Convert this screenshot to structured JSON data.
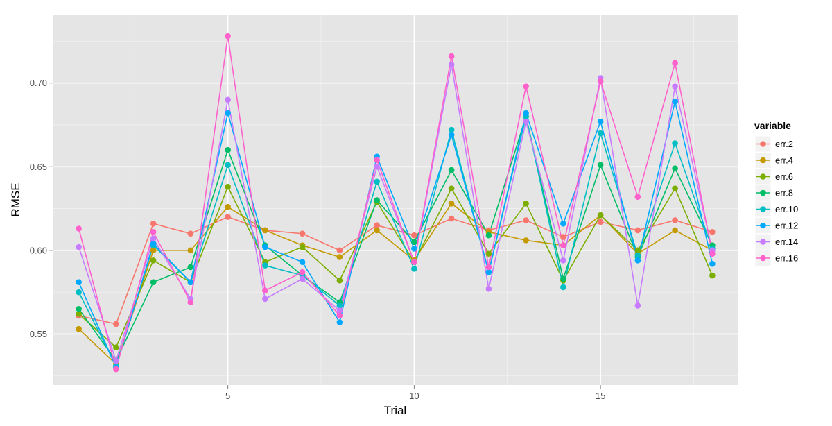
{
  "chart_data": {
    "type": "line",
    "xlabel": "Trial",
    "ylabel": "RMSE",
    "xlim": [
      0.3,
      18.7
    ],
    "ylim": [
      0.5195,
      0.7405
    ],
    "x_ticks": [
      5,
      10,
      15
    ],
    "y_ticks": [
      0.55,
      0.6,
      0.65,
      0.7
    ],
    "y_tick_labels": [
      "0.55",
      "0.60",
      "0.65",
      "0.70"
    ],
    "grid": true,
    "legend": {
      "title": "variable",
      "position": "right"
    },
    "x": [
      1,
      2,
      3,
      4,
      5,
      6,
      7,
      8,
      9,
      10,
      11,
      12,
      13,
      14,
      15,
      16,
      17,
      18
    ],
    "series": [
      {
        "name": "err.2",
        "color": "#F8766D",
        "values": [
          0.561,
          0.556,
          0.616,
          0.61,
          0.62,
          0.612,
          0.61,
          0.6,
          0.615,
          0.609,
          0.619,
          0.612,
          0.618,
          0.608,
          0.617,
          0.612,
          0.618,
          0.611
        ]
      },
      {
        "name": "err.4",
        "color": "#C49A00",
        "values": [
          0.553,
          0.532,
          0.6,
          0.6,
          0.626,
          0.612,
          0.603,
          0.596,
          0.612,
          0.594,
          0.628,
          0.611,
          0.606,
          0.603,
          0.621,
          0.598,
          0.612,
          0.6
        ]
      },
      {
        "name": "err.6",
        "color": "#7CAE00",
        "values": [
          0.562,
          0.542,
          0.594,
          0.581,
          0.638,
          0.593,
          0.602,
          0.582,
          0.629,
          0.593,
          0.637,
          0.598,
          0.628,
          0.582,
          0.621,
          0.6,
          0.637,
          0.585
        ]
      },
      {
        "name": "err.8",
        "color": "#00BE67",
        "values": [
          0.565,
          0.534,
          0.581,
          0.59,
          0.66,
          0.603,
          0.585,
          0.569,
          0.63,
          0.605,
          0.648,
          0.609,
          0.68,
          0.583,
          0.651,
          0.596,
          0.649,
          0.603
        ]
      },
      {
        "name": "err.10",
        "color": "#00BFC4",
        "values": [
          0.575,
          0.531,
          0.603,
          0.581,
          0.651,
          0.591,
          0.585,
          0.567,
          0.641,
          0.589,
          0.672,
          0.587,
          0.68,
          0.578,
          0.67,
          0.597,
          0.664,
          0.601
        ]
      },
      {
        "name": "err.12",
        "color": "#00A9FF",
        "values": [
          0.581,
          0.53,
          0.604,
          0.581,
          0.682,
          0.602,
          0.593,
          0.557,
          0.656,
          0.601,
          0.669,
          0.587,
          0.682,
          0.616,
          0.677,
          0.594,
          0.689,
          0.592
        ]
      },
      {
        "name": "err.14",
        "color": "#C77CFF",
        "values": [
          0.602,
          0.534,
          0.607,
          0.571,
          0.69,
          0.571,
          0.583,
          0.564,
          0.65,
          0.593,
          0.711,
          0.577,
          0.677,
          0.594,
          0.703,
          0.567,
          0.698,
          0.6
        ]
      },
      {
        "name": "err.16",
        "color": "#FF61CC",
        "values": [
          0.613,
          0.529,
          0.611,
          0.569,
          0.728,
          0.576,
          0.587,
          0.561,
          0.654,
          0.593,
          0.716,
          0.59,
          0.698,
          0.603,
          0.701,
          0.632,
          0.712,
          0.598
        ]
      }
    ]
  }
}
